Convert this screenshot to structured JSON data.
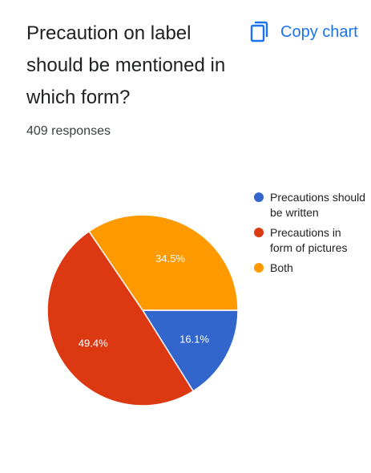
{
  "header": {
    "title": "Precaution on label\nshould be mentioned in\nwhich form?",
    "responses": "409 responses",
    "copy_label": "Copy chart",
    "copy_icon": "copy-icon"
  },
  "chart_data": {
    "type": "pie",
    "title": "Precaution on label should be mentioned in which form?",
    "slices": [
      {
        "label": "Precautions should be written",
        "value": 16.1,
        "value_label": "16.1%",
        "color": "#3366cc"
      },
      {
        "label": "Precautions in form of pictures",
        "value": 49.4,
        "value_label": "49.4%",
        "color": "#dc3912"
      },
      {
        "label": "Both",
        "value": 34.5,
        "value_label": "34.5%",
        "color": "#ff9900"
      }
    ],
    "legend_position": "right"
  },
  "colors": {
    "accent": "#1a73e8",
    "written": "#3366cc",
    "pictures": "#dc3912",
    "both": "#ff9900"
  }
}
